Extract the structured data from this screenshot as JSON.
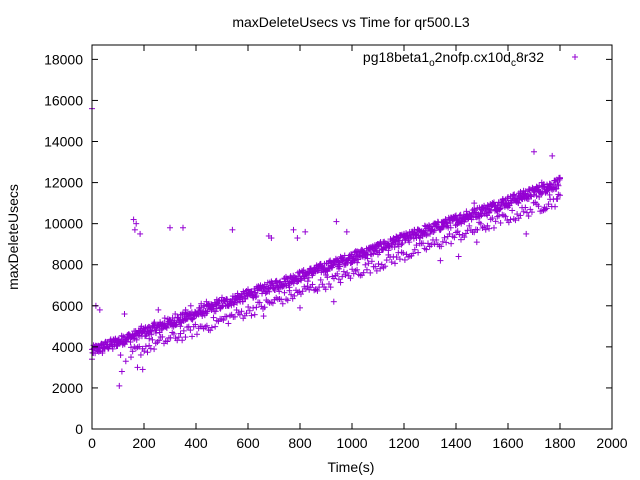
{
  "chart_data": {
    "type": "scatter",
    "title": "maxDeleteUsecs vs Time for qr500.L3",
    "xlabel": "Time(s)",
    "ylabel": "maxDeleteUsecs",
    "xlim": [
      0,
      2000
    ],
    "ylim": [
      0,
      18700
    ],
    "xticks": [
      0,
      200,
      400,
      600,
      800,
      1000,
      1200,
      1400,
      1600,
      1800,
      2000
    ],
    "yticks": [
      0,
      2000,
      4000,
      6000,
      8000,
      10000,
      12000,
      14000,
      16000,
      18000
    ],
    "grid": false,
    "legend_position": "top-right",
    "marker": "+",
    "color": "#9400d3",
    "series": [
      {
        "legend_parts": [
          {
            "text": "pg18beta1",
            "sub": false
          },
          {
            "text": "o",
            "sub": true
          },
          {
            "text": "2nofp.cx10d",
            "sub": false
          },
          {
            "text": "c",
            "sub": true
          },
          {
            "text": "8r32",
            "sub": false
          }
        ],
        "trend_main": {
          "x0": 0,
          "y0": 3800,
          "x1": 1800,
          "y1": 12000
        },
        "trend_lower": {
          "x0": 150,
          "y0": 3700,
          "x1": 1800,
          "y1": 11200
        },
        "points": [
          [
            0,
            15600
          ],
          [
            0,
            3400
          ],
          [
            5,
            3700
          ],
          [
            10,
            4000
          ],
          [
            15,
            6000
          ],
          [
            20,
            3800
          ],
          [
            25,
            3900
          ],
          [
            30,
            5800
          ],
          [
            35,
            4100
          ],
          [
            40,
            3700
          ],
          [
            50,
            4200
          ],
          [
            60,
            4000
          ],
          [
            70,
            4300
          ],
          [
            80,
            3900
          ],
          [
            90,
            4400
          ],
          [
            100,
            4200
          ],
          [
            105,
            2100
          ],
          [
            110,
            3600
          ],
          [
            115,
            2800
          ],
          [
            120,
            4500
          ],
          [
            125,
            5600
          ],
          [
            130,
            3300
          ],
          [
            140,
            4600
          ],
          [
            150,
            3500
          ],
          [
            160,
            10200
          ],
          [
            165,
            9700
          ],
          [
            170,
            10000
          ],
          [
            175,
            3000
          ],
          [
            180,
            4800
          ],
          [
            185,
            9500
          ],
          [
            190,
            5000
          ],
          [
            195,
            2900
          ],
          [
            200,
            4900
          ],
          [
            220,
            4400
          ],
          [
            240,
            5200
          ],
          [
            255,
            5800
          ],
          [
            260,
            4700
          ],
          [
            280,
            5400
          ],
          [
            300,
            9800
          ],
          [
            310,
            5100
          ],
          [
            320,
            5600
          ],
          [
            340,
            5000
          ],
          [
            350,
            9800
          ],
          [
            360,
            5800
          ],
          [
            380,
            6000
          ],
          [
            400,
            5500
          ],
          [
            420,
            6100
          ],
          [
            440,
            6200
          ],
          [
            460,
            5800
          ],
          [
            480,
            6300
          ],
          [
            500,
            6400
          ],
          [
            520,
            6000
          ],
          [
            540,
            9700
          ],
          [
            560,
            6600
          ],
          [
            580,
            6200
          ],
          [
            600,
            6800
          ],
          [
            620,
            6400
          ],
          [
            640,
            6900
          ],
          [
            660,
            5500
          ],
          [
            680,
            9400
          ],
          [
            690,
            9300
          ],
          [
            700,
            7100
          ],
          [
            720,
            6700
          ],
          [
            740,
            7300
          ],
          [
            760,
            6900
          ],
          [
            775,
            9700
          ],
          [
            780,
            7400
          ],
          [
            790,
            9300
          ],
          [
            800,
            5900
          ],
          [
            810,
            7600
          ],
          [
            820,
            9600
          ],
          [
            830,
            7200
          ],
          [
            840,
            7800
          ],
          [
            860,
            6800
          ],
          [
            880,
            7900
          ],
          [
            900,
            7500
          ],
          [
            920,
            8100
          ],
          [
            930,
            6200
          ],
          [
            940,
            10100
          ],
          [
            950,
            7800
          ],
          [
            960,
            8300
          ],
          [
            980,
            9600
          ],
          [
            1000,
            8500
          ],
          [
            1010,
            8600
          ],
          [
            1020,
            8100
          ],
          [
            1040,
            8700
          ],
          [
            1060,
            8300
          ],
          [
            1080,
            8900
          ],
          [
            1100,
            8500
          ],
          [
            1120,
            9100
          ],
          [
            1140,
            8700
          ],
          [
            1160,
            9300
          ],
          [
            1180,
            8900
          ],
          [
            1200,
            9500
          ],
          [
            1220,
            9100
          ],
          [
            1240,
            9700
          ],
          [
            1260,
            9300
          ],
          [
            1280,
            9900
          ],
          [
            1300,
            9500
          ],
          [
            1320,
            10000
          ],
          [
            1340,
            8200
          ],
          [
            1360,
            10200
          ],
          [
            1380,
            9800
          ],
          [
            1400,
            10400
          ],
          [
            1410,
            8400
          ],
          [
            1420,
            10000
          ],
          [
            1440,
            10600
          ],
          [
            1460,
            10200
          ],
          [
            1470,
            11000
          ],
          [
            1480,
            9100
          ],
          [
            1500,
            10800
          ],
          [
            1520,
            10400
          ],
          [
            1540,
            11000
          ],
          [
            1560,
            10600
          ],
          [
            1580,
            11200
          ],
          [
            1600,
            10800
          ],
          [
            1620,
            11400
          ],
          [
            1640,
            11000
          ],
          [
            1660,
            11600
          ],
          [
            1670,
            9500
          ],
          [
            1680,
            11200
          ],
          [
            1700,
            13500
          ],
          [
            1710,
            11800
          ],
          [
            1720,
            11300
          ],
          [
            1730,
            12000
          ],
          [
            1740,
            10800
          ],
          [
            1750,
            11900
          ],
          [
            1760,
            11400
          ],
          [
            1770,
            13300
          ],
          [
            1780,
            12100
          ],
          [
            1790,
            11200
          ],
          [
            1800,
            12200
          ]
        ]
      }
    ]
  }
}
